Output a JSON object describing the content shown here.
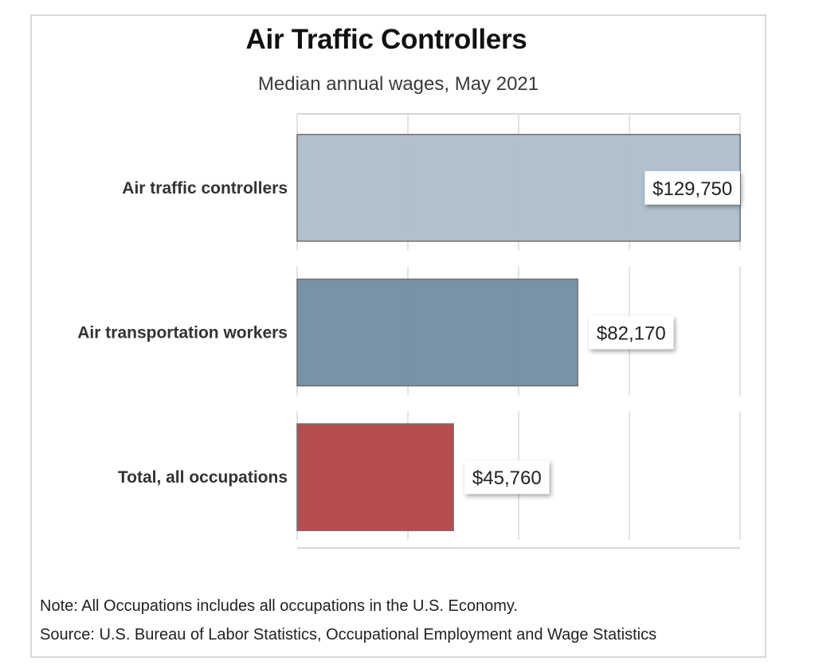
{
  "chart_data": {
    "type": "bar",
    "orientation": "horizontal",
    "title": "Air Traffic Controllers",
    "subtitle": "Median annual wages, May 2021",
    "categories": [
      "Air traffic controllers",
      "Air transportation workers",
      "Total, all occupations"
    ],
    "values": [
      129750,
      82170,
      45760
    ],
    "value_labels": [
      "$129,750",
      "$82,170",
      "$45,760"
    ],
    "colors": [
      "#acbdc9",
      "#718ca3",
      "#b24244"
    ],
    "xlim": [
      0,
      129750
    ],
    "xlabel": "",
    "ylabel": "",
    "grid": true
  },
  "notes": {
    "note": "Note: All Occupations includes all occupations in the U.S. Economy.",
    "source": "Source: U.S. Bureau of Labor Statistics, Occupational Employment and Wage Statistics"
  }
}
